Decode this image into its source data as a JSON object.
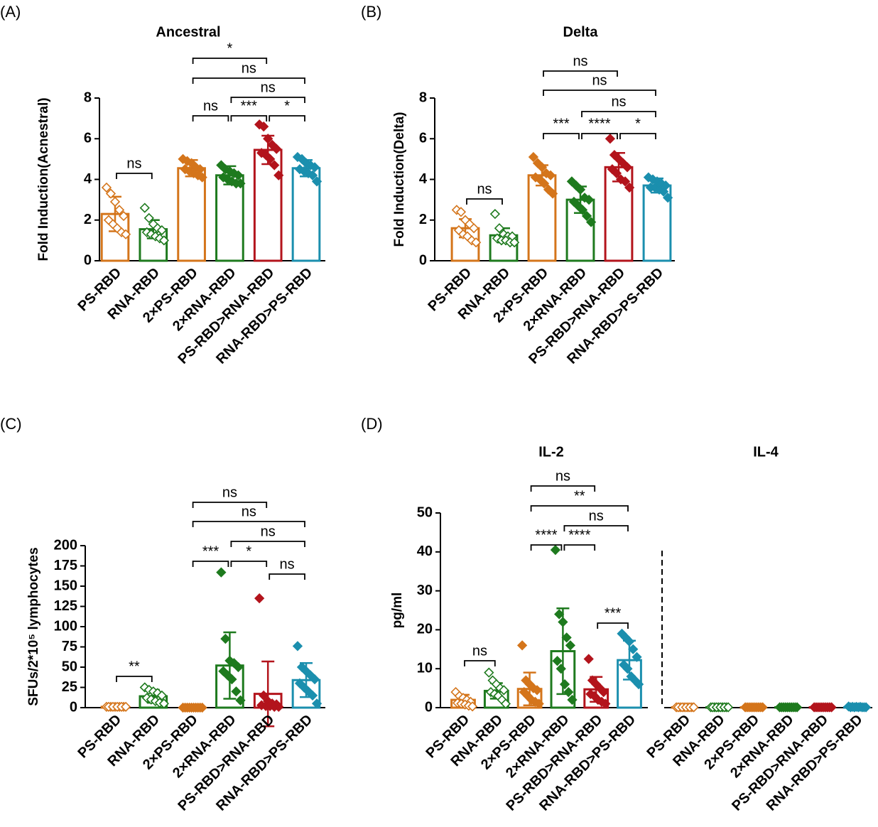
{
  "chart_data": [
    {
      "type": "bar",
      "panel": "(A)",
      "title": "Ancestral",
      "y_label": "Fold Induction(Acnestral)",
      "categories": [
        "PS-RBD",
        "RNA-RBD",
        "2×PS-RBD",
        "2×RNA-RBD",
        "PS-RBD>RNA-RBD",
        "RNA-RBD>PS-RBD"
      ],
      "values": [
        2.3,
        1.55,
        4.55,
        4.2,
        5.45,
        4.55
      ],
      "errors": [
        0.85,
        0.45,
        0.4,
        0.45,
        0.7,
        0.4
      ],
      "colors": [
        "#d4751b",
        "#1e7a1e",
        "#d4751b",
        "#1e7a1e",
        "#b3141c",
        "#1b8fae"
      ],
      "hollow_points": [
        true,
        true,
        false,
        false,
        false,
        false
      ],
      "points": [
        [
          3.6,
          3.3,
          2.9,
          2.5,
          2.2,
          2.0,
          1.8,
          1.6,
          1.4,
          1.3
        ],
        [
          2.6,
          2.1,
          1.8,
          1.6,
          1.5,
          1.4,
          1.3,
          1.2,
          1.1,
          1.0
        ],
        [
          5.0,
          4.9,
          4.8,
          4.6,
          4.5,
          4.5,
          4.4,
          4.3,
          4.2,
          4.1
        ],
        [
          4.7,
          4.5,
          4.4,
          4.3,
          4.2,
          4.1,
          4.0,
          3.9,
          3.8,
          3.8
        ],
        [
          6.7,
          6.6,
          6.0,
          5.7,
          5.5,
          5.3,
          5.2,
          5.0,
          4.7,
          4.2
        ],
        [
          5.1,
          5.0,
          4.8,
          4.7,
          4.6,
          4.5,
          4.4,
          4.3,
          4.2,
          3.9
        ]
      ],
      "ylim": [
        0,
        8
      ],
      "yticks": [
        0,
        2,
        4,
        6,
        8
      ],
      "brackets": [
        {
          "from": 0,
          "to": 1,
          "label": "ns"
        },
        {
          "from": 2,
          "to": 3,
          "label": "ns"
        },
        {
          "from": 3,
          "to": 4,
          "label": "***"
        },
        {
          "from": 4,
          "to": 5,
          "label": "*"
        },
        {
          "from": 3,
          "to": 5,
          "label": "ns"
        },
        {
          "from": 2,
          "to": 5,
          "label": "ns"
        },
        {
          "from": 2,
          "to": 4,
          "label": "*"
        }
      ]
    },
    {
      "type": "bar",
      "panel": "(B)",
      "title": "Delta",
      "y_label": "Fold Induction(Delta)",
      "categories": [
        "PS-RBD",
        "RNA-RBD",
        "2×PS-RBD",
        "2×RNA-RBD",
        "PS-RBD>RNA-RBD",
        "RNA-RBD>PS-RBD"
      ],
      "values": [
        1.6,
        1.25,
        4.2,
        3.0,
        4.6,
        3.7
      ],
      "errors": [
        0.45,
        0.35,
        0.5,
        0.65,
        0.7,
        0.35
      ],
      "colors": [
        "#d4751b",
        "#1e7a1e",
        "#d4751b",
        "#1e7a1e",
        "#b3141c",
        "#1b8fae"
      ],
      "hollow_points": [
        true,
        true,
        false,
        false,
        false,
        false
      ],
      "points": [
        [
          2.5,
          2.4,
          2.0,
          1.8,
          1.6,
          1.5,
          1.3,
          1.2,
          1.0,
          0.9
        ],
        [
          2.3,
          1.6,
          1.3,
          1.2,
          1.2,
          1.1,
          1.0,
          1.0,
          0.9,
          0.9
        ],
        [
          5.1,
          4.8,
          4.6,
          4.3,
          4.2,
          4.1,
          4.0,
          3.8,
          3.5,
          3.3
        ],
        [
          3.9,
          3.7,
          3.5,
          3.1,
          3.0,
          2.9,
          2.7,
          2.5,
          2.2,
          1.9
        ],
        [
          6.0,
          5.2,
          5.0,
          4.8,
          4.6,
          4.5,
          4.3,
          4.0,
          3.9,
          3.6
        ],
        [
          4.1,
          4.0,
          3.9,
          3.8,
          3.7,
          3.6,
          3.6,
          3.5,
          3.4,
          3.1
        ]
      ],
      "ylim": [
        0,
        8
      ],
      "yticks": [
        0,
        2,
        4,
        6,
        8
      ],
      "brackets": [
        {
          "from": 0,
          "to": 1,
          "label": "ns"
        },
        {
          "from": 2,
          "to": 3,
          "label": "***"
        },
        {
          "from": 3,
          "to": 4,
          "label": "****"
        },
        {
          "from": 4,
          "to": 5,
          "label": "*"
        },
        {
          "from": 3,
          "to": 5,
          "label": "ns"
        },
        {
          "from": 2,
          "to": 5,
          "label": "ns"
        },
        {
          "from": 2,
          "to": 4,
          "label": "ns"
        }
      ]
    },
    {
      "type": "bar",
      "panel": "(C)",
      "y_label": "SFUs/2*10⁵ lymphocytes",
      "categories": [
        "PS-RBD",
        "RNA-RBD",
        "2×PS-RBD",
        "2×RNA-RBD",
        "PS-RBD>RNA-RBD",
        "RNA-RBD>PS-RBD"
      ],
      "values": [
        1,
        14,
        0,
        52,
        17,
        34
      ],
      "errors": [
        1,
        8,
        0,
        41,
        40,
        21
      ],
      "colors": [
        "#d4751b",
        "#1e7a1e",
        "#d4751b",
        "#1e7a1e",
        "#b3141c",
        "#1b8fae"
      ],
      "hollow_points": [
        true,
        true,
        false,
        false,
        false,
        false
      ],
      "points": [
        [
          1,
          1,
          1,
          1,
          1,
          1,
          1,
          1,
          1,
          1
        ],
        [
          25,
          22,
          20,
          18,
          15,
          12,
          10,
          8,
          6,
          5
        ],
        [
          0,
          0,
          0,
          0,
          0,
          0,
          0,
          0,
          0,
          0
        ],
        [
          167,
          85,
          58,
          55,
          50,
          45,
          40,
          35,
          20,
          9
        ],
        [
          135,
          15,
          8,
          5,
          4,
          3,
          2,
          2,
          1,
          1
        ],
        [
          76,
          50,
          45,
          40,
          35,
          30,
          25,
          20,
          15,
          5
        ]
      ],
      "ylim": [
        0,
        200
      ],
      "yticks": [
        0,
        25,
        50,
        75,
        100,
        125,
        150,
        175,
        200
      ],
      "brackets": [
        {
          "from": 0,
          "to": 1,
          "label": "**"
        },
        {
          "from": 2,
          "to": 3,
          "label": "***"
        },
        {
          "from": 3,
          "to": 4,
          "label": "*"
        },
        {
          "from": 4,
          "to": 5,
          "label": "ns"
        },
        {
          "from": 3,
          "to": 5,
          "label": "ns"
        },
        {
          "from": 2,
          "to": 5,
          "label": "ns"
        },
        {
          "from": 2,
          "to": 4,
          "label": "ns"
        }
      ]
    },
    {
      "type": "bar",
      "panel": "(D)",
      "title": "IL-2",
      "y_label": "pg/ml",
      "categories": [
        "PS-RBD",
        "RNA-RBD",
        "2×PS-RBD",
        "2×RNA-RBD",
        "PS-RBD>RNA-RBD",
        "RNA-RBD>PS-RBD"
      ],
      "values": [
        2,
        4.3,
        4.8,
        14.5,
        4.7,
        12.2
      ],
      "errors": [
        1.3,
        2,
        4.2,
        11,
        3.2,
        5
      ],
      "colors": [
        "#d4751b",
        "#1e7a1e",
        "#d4751b",
        "#1e7a1e",
        "#b3141c",
        "#1b8fae"
      ],
      "hollow_points": [
        true,
        true,
        false,
        false,
        false,
        false
      ],
      "points": [
        [
          4,
          3,
          2.5,
          2,
          1.5,
          1.2,
          1,
          0.8,
          0.5,
          0.3
        ],
        [
          9,
          7,
          6,
          5,
          4.5,
          4,
          3.5,
          3,
          2,
          1
        ],
        [
          16,
          7,
          6,
          5,
          4.5,
          4,
          3,
          2,
          1.5,
          1
        ],
        [
          40.5,
          24,
          22,
          18,
          16,
          12,
          10,
          6,
          4,
          2
        ],
        [
          12.5,
          7,
          6,
          5,
          4,
          3.5,
          3,
          2,
          1.5,
          1
        ],
        [
          19,
          18,
          17,
          15,
          13,
          11,
          10,
          8,
          7,
          6
        ]
      ],
      "ylim": [
        0,
        50
      ],
      "yticks": [
        0,
        10,
        20,
        30,
        40,
        50
      ],
      "brackets": [
        {
          "from": 0,
          "to": 1,
          "label": "ns"
        },
        {
          "from": 2,
          "to": 3,
          "label": "****"
        },
        {
          "from": 3,
          "to": 4,
          "label": "****"
        },
        {
          "from": 3,
          "to": 5,
          "label": "ns"
        },
        {
          "from": 2,
          "to": 5,
          "label": "**"
        },
        {
          "from": 2,
          "to": 4,
          "label": "ns"
        },
        {
          "from": 4,
          "to": 5,
          "label": "***"
        }
      ]
    },
    {
      "type": "bar",
      "title": "IL-4",
      "categories": [
        "PS-RBD",
        "RNA-RBD",
        "2×PS-RBD",
        "2×RNA-RBD",
        "PS-RBD>RNA-RBD",
        "RNA-RBD>PS-RBD"
      ],
      "values": [
        0.1,
        0.1,
        0.1,
        0.1,
        0.1,
        0.1
      ],
      "errors": [
        0.05,
        0.05,
        0.05,
        0.05,
        0.05,
        0.05
      ],
      "colors": [
        "#d4751b",
        "#1e7a1e",
        "#d4751b",
        "#1e7a1e",
        "#b3141c",
        "#1b8fae"
      ],
      "hollow_points": [
        true,
        true,
        false,
        false,
        false,
        false
      ],
      "points": [
        [
          0.1,
          0.1,
          0.1,
          0.1,
          0.1,
          0.1,
          0.1,
          0.1,
          0.1,
          0.1
        ],
        [
          0.1,
          0.1,
          0.1,
          0.1,
          0.1,
          0.1,
          0.1,
          0.1,
          0.1,
          0.1
        ],
        [
          0.1,
          0.1,
          0.1,
          0.1,
          0.1,
          0.1,
          0.1,
          0.1,
          0.1,
          0.1
        ],
        [
          0.1,
          0.1,
          0.1,
          0.1,
          0.1,
          0.1,
          0.1,
          0.1,
          0.1,
          0.1
        ],
        [
          0.1,
          0.1,
          0.1,
          0.1,
          0.1,
          0.1,
          0.1,
          0.1,
          0.1,
          0.1
        ],
        [
          0.3,
          0.2,
          0.2,
          0.2,
          0.1,
          0.1,
          0.1,
          0.1,
          0.1,
          0.1
        ]
      ],
      "ylim": [
        0,
        50
      ]
    }
  ]
}
